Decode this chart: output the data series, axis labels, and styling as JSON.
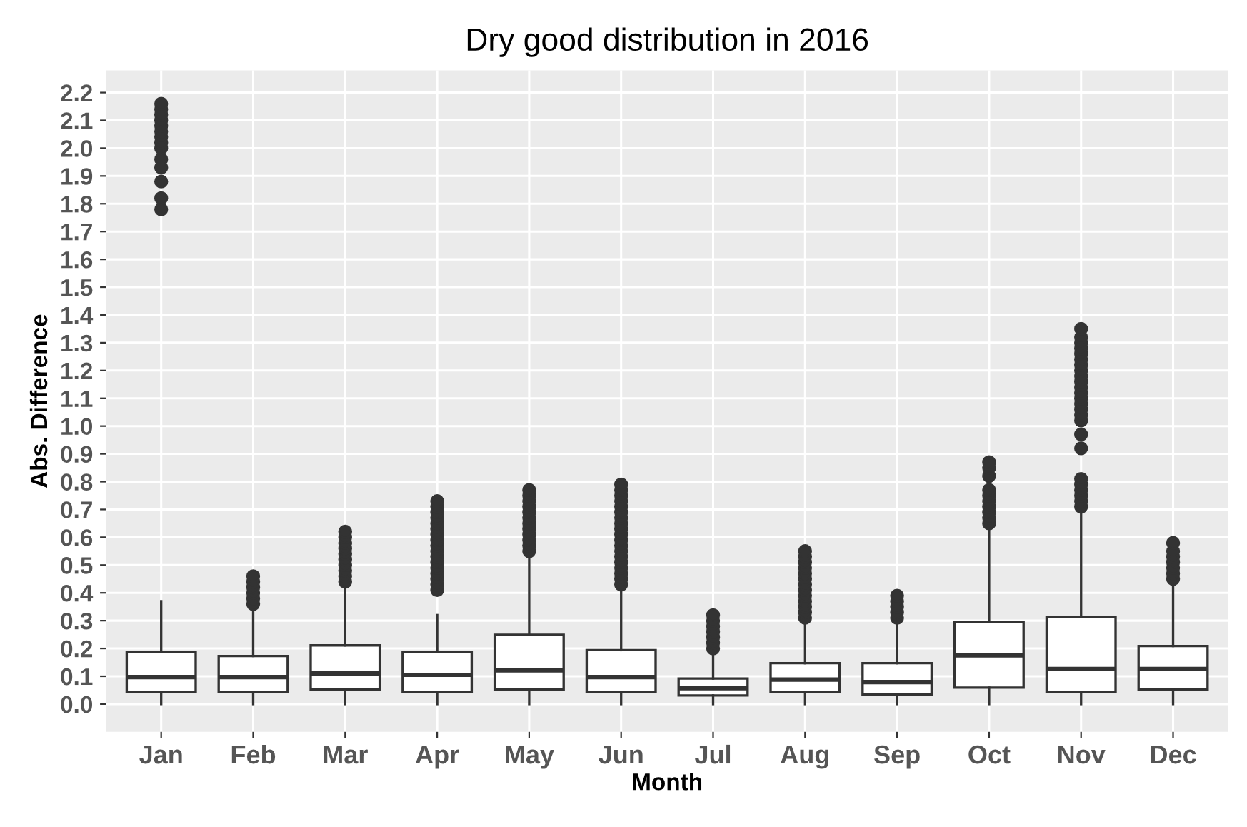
{
  "chart_data": {
    "type": "box",
    "title": "Dry good distribution in 2016",
    "xlabel": "Month",
    "ylabel": "Abs. Difference",
    "categories": [
      "Jan",
      "Feb",
      "Mar",
      "Apr",
      "May",
      "Jun",
      "Jul",
      "Aug",
      "Sep",
      "Oct",
      "Nov",
      "Dec"
    ],
    "boxes": [
      {
        "low": 0.0,
        "q1": 0.043,
        "median": 0.097,
        "q3": 0.187,
        "high": 0.37,
        "outliers": [
          1.78,
          1.82,
          1.88,
          1.93,
          1.96,
          2.0,
          2.02,
          2.04,
          2.06,
          2.08,
          2.1,
          2.12,
          2.14,
          2.16
        ]
      },
      {
        "low": 0.0,
        "q1": 0.043,
        "median": 0.097,
        "q3": 0.173,
        "high": 0.353,
        "outliers": [
          0.36,
          0.38,
          0.4,
          0.42,
          0.44,
          0.46
        ]
      },
      {
        "low": 0.0,
        "q1": 0.052,
        "median": 0.11,
        "q3": 0.211,
        "high": 0.43,
        "outliers": [
          0.44,
          0.46,
          0.48,
          0.5,
          0.52,
          0.54,
          0.56,
          0.58,
          0.6,
          0.62
        ]
      },
      {
        "low": 0.0,
        "q1": 0.043,
        "median": 0.105,
        "q3": 0.187,
        "high": 0.32,
        "outliers": [
          0.41,
          0.43,
          0.45,
          0.47,
          0.49,
          0.51,
          0.53,
          0.55,
          0.57,
          0.59,
          0.61,
          0.63,
          0.65,
          0.67,
          0.69,
          0.71,
          0.73
        ]
      },
      {
        "low": 0.0,
        "q1": 0.052,
        "median": 0.121,
        "q3": 0.249,
        "high": 0.54,
        "outliers": [
          0.55,
          0.57,
          0.59,
          0.61,
          0.63,
          0.65,
          0.67,
          0.69,
          0.71,
          0.73,
          0.75,
          0.77
        ]
      },
      {
        "low": 0.0,
        "q1": 0.043,
        "median": 0.097,
        "q3": 0.194,
        "high": 0.417,
        "outliers": [
          0.43,
          0.45,
          0.47,
          0.49,
          0.51,
          0.53,
          0.55,
          0.57,
          0.59,
          0.61,
          0.63,
          0.65,
          0.67,
          0.69,
          0.71,
          0.73,
          0.75,
          0.77,
          0.79
        ]
      },
      {
        "low": 0.0,
        "q1": 0.031,
        "median": 0.057,
        "q3": 0.092,
        "high": 0.19,
        "outliers": [
          0.2,
          0.22,
          0.24,
          0.26,
          0.28,
          0.3,
          0.32
        ]
      },
      {
        "low": 0.0,
        "q1": 0.043,
        "median": 0.088,
        "q3": 0.147,
        "high": 0.296,
        "outliers": [
          0.31,
          0.33,
          0.35,
          0.37,
          0.39,
          0.41,
          0.43,
          0.45,
          0.47,
          0.49,
          0.51,
          0.53,
          0.55
        ]
      },
      {
        "low": 0.0,
        "q1": 0.035,
        "median": 0.079,
        "q3": 0.147,
        "high": 0.296,
        "outliers": [
          0.31,
          0.33,
          0.35,
          0.37,
          0.39
        ]
      },
      {
        "low": 0.0,
        "q1": 0.059,
        "median": 0.175,
        "q3": 0.296,
        "high": 0.637,
        "outliers": [
          0.65,
          0.67,
          0.69,
          0.71,
          0.73,
          0.75,
          0.77,
          0.82,
          0.85,
          0.87
        ]
      },
      {
        "low": 0.0,
        "q1": 0.043,
        "median": 0.126,
        "q3": 0.313,
        "high": 0.7,
        "outliers": [
          0.71,
          0.73,
          0.75,
          0.77,
          0.79,
          0.81,
          0.92,
          0.97,
          1.02,
          1.04,
          1.06,
          1.08,
          1.1,
          1.12,
          1.14,
          1.16,
          1.18,
          1.2,
          1.22,
          1.24,
          1.26,
          1.28,
          1.3,
          1.32,
          1.35
        ]
      },
      {
        "low": 0.0,
        "q1": 0.052,
        "median": 0.126,
        "q3": 0.209,
        "high": 0.43,
        "outliers": [
          0.45,
          0.47,
          0.49,
          0.51,
          0.53,
          0.55,
          0.58
        ]
      }
    ],
    "ylim": [
      -0.1,
      2.28
    ],
    "yticks": [
      {
        "value": 0,
        "label": "0.0"
      },
      0.1,
      0.2,
      0.3,
      0.4,
      0.5,
      0.6,
      0.7,
      0.8,
      0.9,
      {
        "value": 1,
        "label": "1.0"
      },
      1.1,
      1.2,
      1.3,
      1.4,
      1.5,
      1.6,
      1.7,
      1.8,
      1.9,
      {
        "value": 2,
        "label": "2.0"
      },
      2.1,
      2.2
    ],
    "grid": true,
    "color": "#333333"
  }
}
